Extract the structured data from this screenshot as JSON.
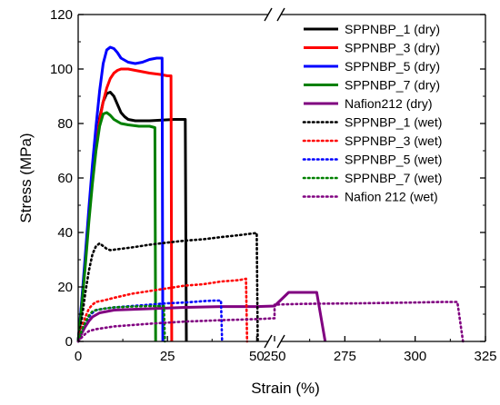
{
  "chart_data": {
    "type": "line",
    "xlabel": "Strain (%)",
    "ylabel": "Stress (MPa)",
    "x_break": {
      "lower_range": [
        0,
        55
      ],
      "upper_range": [
        250,
        325
      ]
    },
    "xlim": [
      0,
      325
    ],
    "ylim": [
      0,
      120
    ],
    "x_ticks": [
      0,
      25,
      50,
      250,
      275,
      300,
      325
    ],
    "y_ticks": [
      0,
      20,
      40,
      60,
      80,
      100,
      120
    ],
    "legend_position": "top-right",
    "grid": false,
    "series": [
      {
        "name": "SPPNBP_1 (dry)",
        "color": "#000000",
        "style": "solid",
        "points": [
          [
            0,
            0
          ],
          [
            1,
            14
          ],
          [
            2,
            30
          ],
          [
            3,
            46
          ],
          [
            4,
            60
          ],
          [
            5,
            72
          ],
          [
            6,
            82
          ],
          [
            7,
            88
          ],
          [
            8,
            91
          ],
          [
            9,
            91.5
          ],
          [
            10,
            90
          ],
          [
            11,
            87
          ],
          [
            12,
            84
          ],
          [
            13,
            82.5
          ],
          [
            14,
            81.5
          ],
          [
            16,
            81
          ],
          [
            20,
            81
          ],
          [
            24,
            81.3
          ],
          [
            27,
            81.5
          ],
          [
            29,
            81.5
          ],
          [
            30,
            81.5
          ],
          [
            30.3,
            0
          ]
        ]
      },
      {
        "name": "SPPNBP_3 (dry)",
        "color": "#ff0000",
        "style": "solid",
        "points": [
          [
            0,
            0
          ],
          [
            1,
            14
          ],
          [
            2,
            30
          ],
          [
            3,
            46
          ],
          [
            4,
            60
          ],
          [
            5,
            72
          ],
          [
            6,
            81
          ],
          [
            7,
            88
          ],
          [
            8,
            93
          ],
          [
            9,
            96.5
          ],
          [
            10,
            98.5
          ],
          [
            11,
            99.5
          ],
          [
            12,
            100
          ],
          [
            14,
            100
          ],
          [
            16,
            99.5
          ],
          [
            18,
            99
          ],
          [
            20,
            98.5
          ],
          [
            23,
            98
          ],
          [
            25,
            97.5
          ],
          [
            26,
            97.5
          ],
          [
            26.2,
            0
          ]
        ]
      },
      {
        "name": "SPPNBP_5 (dry)",
        "color": "#0000ff",
        "style": "solid",
        "points": [
          [
            0,
            0
          ],
          [
            1,
            15
          ],
          [
            2,
            32
          ],
          [
            3,
            49
          ],
          [
            4,
            65
          ],
          [
            5,
            79
          ],
          [
            6,
            92
          ],
          [
            7,
            102
          ],
          [
            8,
            107
          ],
          [
            9,
            108
          ],
          [
            10,
            107.5
          ],
          [
            11,
            106
          ],
          [
            12,
            104
          ],
          [
            14,
            102.5
          ],
          [
            16,
            102
          ],
          [
            18,
            102.5
          ],
          [
            20,
            103.5
          ],
          [
            22,
            104
          ],
          [
            23.5,
            104
          ],
          [
            23.7,
            0
          ]
        ]
      },
      {
        "name": "SPPNBP_7 (dry)",
        "color": "#008000",
        "style": "solid",
        "points": [
          [
            0,
            0
          ],
          [
            1,
            13
          ],
          [
            2,
            28
          ],
          [
            3,
            44
          ],
          [
            4,
            58
          ],
          [
            5,
            70
          ],
          [
            6,
            79
          ],
          [
            7,
            83.5
          ],
          [
            8,
            84
          ],
          [
            9,
            83
          ],
          [
            10,
            81.5
          ],
          [
            12,
            80
          ],
          [
            14,
            79.5
          ],
          [
            17,
            79
          ],
          [
            20,
            79
          ],
          [
            21.5,
            78.5
          ],
          [
            21.7,
            0
          ]
        ]
      },
      {
        "name": "Nafion212 (dry)",
        "color": "#800080",
        "style": "solid",
        "points": [
          [
            0,
            0
          ],
          [
            1,
            3
          ],
          [
            2,
            5.5
          ],
          [
            3,
            7.5
          ],
          [
            4,
            9
          ],
          [
            6,
            10.5
          ],
          [
            10,
            11.5
          ],
          [
            20,
            12
          ],
          [
            30,
            12.5
          ],
          [
            40,
            12.8
          ],
          [
            50,
            12.8
          ],
          [
            55,
            13
          ],
          [
            250,
            13
          ],
          [
            255,
            18
          ],
          [
            262,
            18
          ],
          [
            265,
            18
          ],
          [
            268,
            0
          ]
        ]
      },
      {
        "name": "SPPNBP_1 (wet)",
        "color": "#000000",
        "style": "dotted",
        "points": [
          [
            0,
            0
          ],
          [
            1,
            8
          ],
          [
            2,
            18
          ],
          [
            3,
            26
          ],
          [
            4,
            32
          ],
          [
            5,
            35
          ],
          [
            6,
            36
          ],
          [
            7,
            35
          ],
          [
            8,
            34
          ],
          [
            9,
            33.5
          ],
          [
            12,
            34
          ],
          [
            15,
            34.5
          ],
          [
            20,
            35.5
          ],
          [
            25,
            36.3
          ],
          [
            30,
            37
          ],
          [
            35,
            37.5
          ],
          [
            40,
            38.3
          ],
          [
            45,
            39
          ],
          [
            48,
            39.5
          ],
          [
            50,
            39.8
          ],
          [
            50.3,
            0
          ]
        ]
      },
      {
        "name": "SPPNBP_3 (wet)",
        "color": "#ff0000",
        "style": "dotted",
        "points": [
          [
            0,
            0
          ],
          [
            1,
            5
          ],
          [
            2,
            9
          ],
          [
            3,
            12
          ],
          [
            4,
            13.5
          ],
          [
            5,
            14.5
          ],
          [
            7,
            15
          ],
          [
            10,
            16
          ],
          [
            15,
            17.5
          ],
          [
            20,
            18.5
          ],
          [
            25,
            19.5
          ],
          [
            30,
            20.5
          ],
          [
            35,
            21
          ],
          [
            40,
            22
          ],
          [
            45,
            22.5
          ],
          [
            47,
            23
          ],
          [
            47.3,
            0
          ]
        ]
      },
      {
        "name": "SPPNBP_5 (wet)",
        "color": "#0000ff",
        "style": "dotted",
        "points": [
          [
            0,
            0
          ],
          [
            1,
            4
          ],
          [
            2,
            7
          ],
          [
            3,
            9
          ],
          [
            4,
            10.5
          ],
          [
            5,
            11.5
          ],
          [
            7,
            12
          ],
          [
            10,
            12.5
          ],
          [
            15,
            13
          ],
          [
            20,
            13.5
          ],
          [
            25,
            14
          ],
          [
            30,
            14.3
          ],
          [
            35,
            14.8
          ],
          [
            38,
            15
          ],
          [
            40,
            15
          ],
          [
            40.3,
            0
          ]
        ]
      },
      {
        "name": "SPPNBP_7 (wet)",
        "color": "#008000",
        "style": "dotted",
        "points": [
          [
            0,
            0
          ],
          [
            1,
            4
          ],
          [
            2,
            7
          ],
          [
            3,
            9.5
          ],
          [
            4,
            11
          ],
          [
            5,
            11.5
          ],
          [
            7,
            12
          ],
          [
            10,
            12.5
          ],
          [
            15,
            12.8
          ],
          [
            20,
            13
          ],
          [
            24,
            13
          ],
          [
            24.3,
            0
          ]
        ]
      },
      {
        "name": "Nafion 212 (wet)",
        "color": "#800080",
        "style": "dotted",
        "points": [
          [
            0,
            0
          ],
          [
            1,
            1.5
          ],
          [
            2,
            2.8
          ],
          [
            3,
            3.8
          ],
          [
            5,
            4.5
          ],
          [
            10,
            5.5
          ],
          [
            20,
            6.5
          ],
          [
            30,
            7.3
          ],
          [
            40,
            7.8
          ],
          [
            50,
            8.2
          ],
          [
            55,
            8.5
          ],
          [
            250,
            13.5
          ],
          [
            260,
            13.8
          ],
          [
            280,
            14
          ],
          [
            300,
            14.3
          ],
          [
            310,
            14.5
          ],
          [
            315,
            14.5
          ],
          [
            317,
            0
          ]
        ]
      }
    ]
  }
}
